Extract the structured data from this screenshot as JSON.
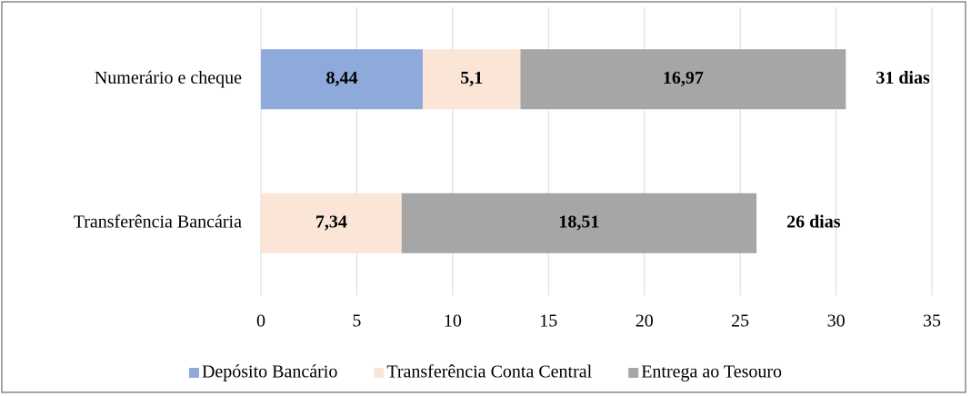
{
  "chart_data": {
    "type": "stacked-bar-horizontal",
    "categories": [
      "Numerário e cheque",
      "Transferência Bancária"
    ],
    "series": [
      {
        "name": "Depósito Bancário",
        "color": "#8eaadb",
        "values": [
          8.44,
          null
        ],
        "value_labels": [
          "8,44",
          null
        ]
      },
      {
        "name": "Transferência Conta Central",
        "color": "#fbe5d6",
        "values": [
          5.1,
          7.34
        ],
        "value_labels": [
          "5,1",
          "7,34"
        ]
      },
      {
        "name": "Entrega ao Tesouro",
        "color": "#a6a6a6",
        "values": [
          16.97,
          18.51
        ],
        "value_labels": [
          "16,97",
          "18,51"
        ]
      }
    ],
    "total_labels": [
      "31 dias",
      "26 dias"
    ],
    "xlim": [
      0,
      35
    ],
    "xticks": [
      0,
      5,
      10,
      15,
      20,
      25,
      30,
      35
    ],
    "grid": true,
    "legend": "bottom"
  }
}
